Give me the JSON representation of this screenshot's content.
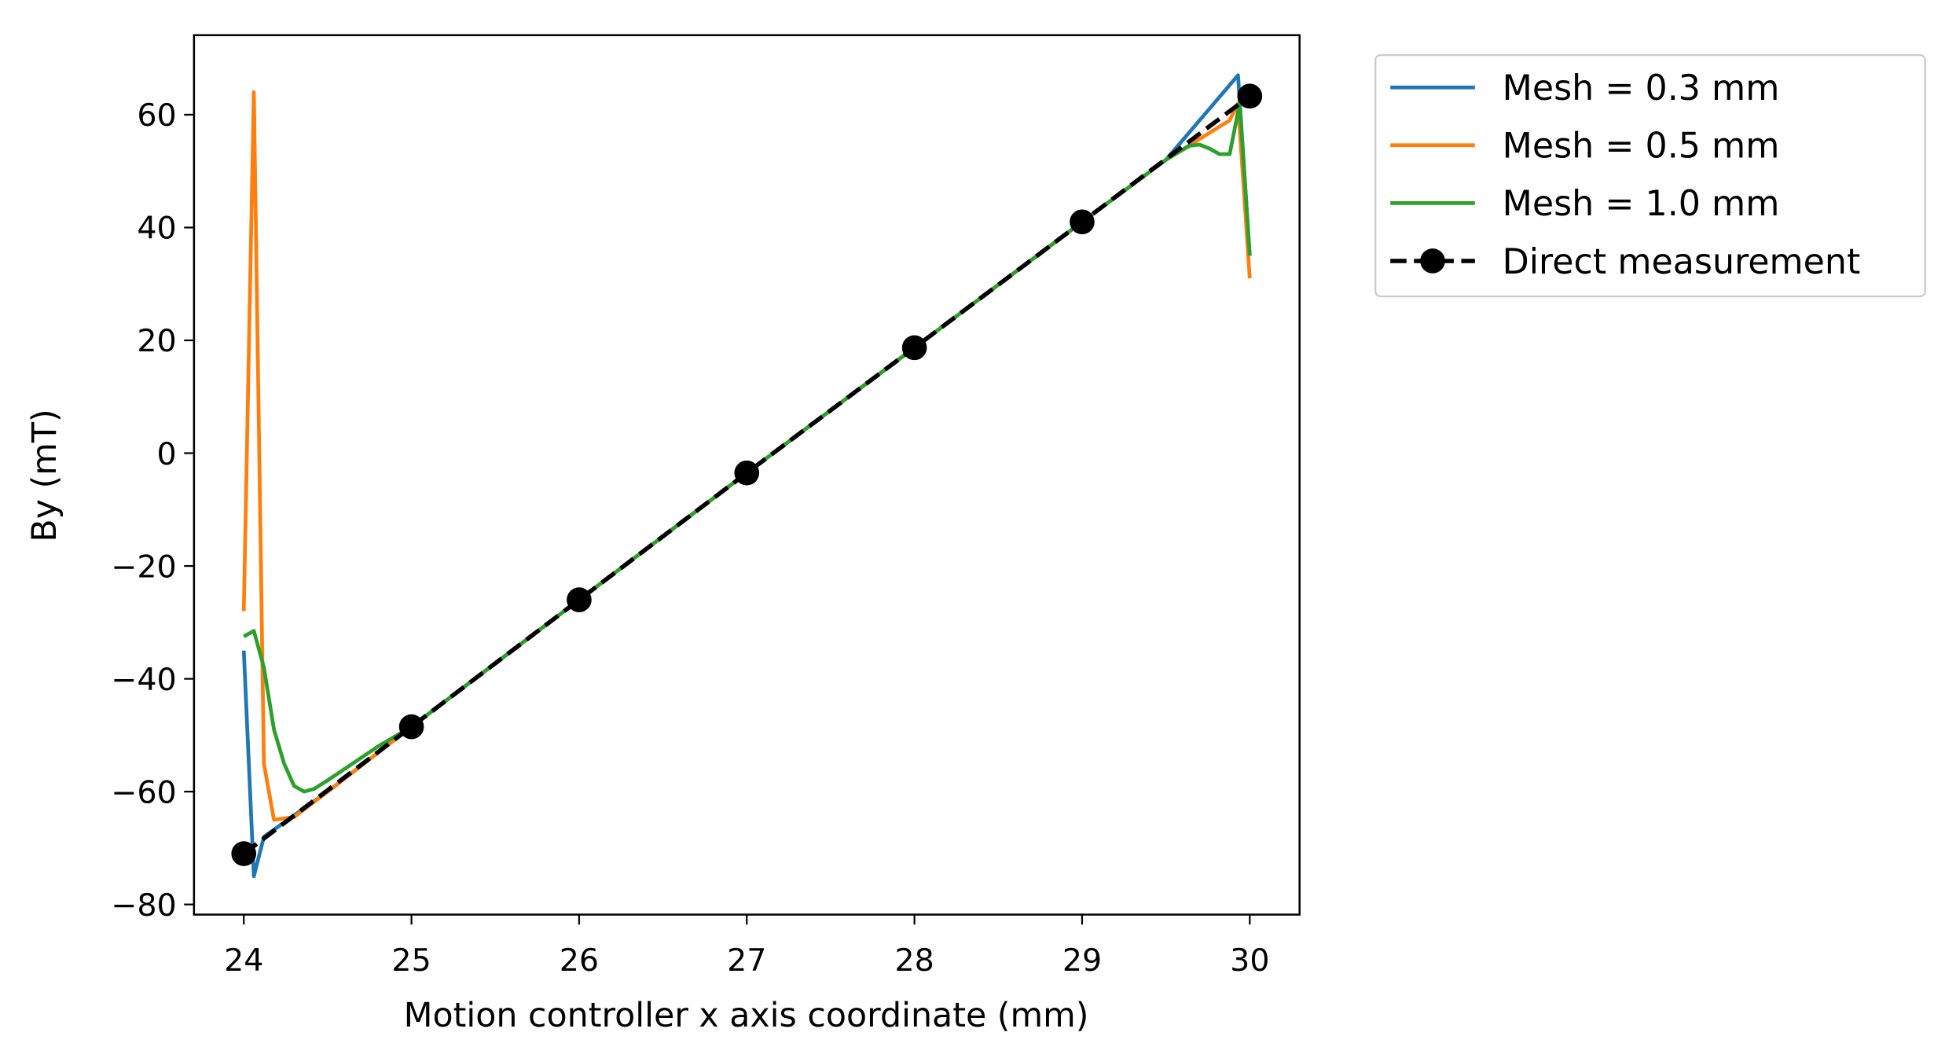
{
  "chart_data": {
    "type": "line",
    "xlabel": "Motion controller x axis coordinate (mm)",
    "ylabel": "By (mT)",
    "xlim": [
      23.703,
      30.297
    ],
    "ylim": [
      -81.8,
      74.1
    ],
    "xticks": [
      24,
      25,
      26,
      27,
      28,
      29,
      30
    ],
    "yticks": [
      {
        "value": -80,
        "label": "−80"
      },
      {
        "value": -60,
        "label": "−60"
      },
      {
        "value": -40,
        "label": "−40"
      },
      {
        "value": -20,
        "label": "−20"
      },
      0,
      20,
      40,
      60
    ],
    "legend": "outside-upper-right",
    "series": [
      {
        "name": "Mesh = 0.3 mm",
        "color": "#1f77b4",
        "x": [
          24.0,
          24.06,
          24.12,
          24.5,
          25,
          26,
          27,
          28,
          29,
          29.5,
          29.93,
          30.0
        ],
        "values": [
          -35,
          -75,
          -68,
          -60,
          -48.5,
          -26,
          -3.5,
          18.7,
          41,
          52,
          67,
          35
        ]
      },
      {
        "name": "Mesh = 0.5 mm",
        "color": "#ff7f0e",
        "x": [
          24.0,
          24.06,
          24.12,
          24.18,
          24.3,
          24.5,
          25,
          26,
          27,
          28,
          29,
          29.5,
          29.88,
          29.93,
          30.0
        ],
        "values": [
          -28,
          64,
          -55,
          -65,
          -64.5,
          -60,
          -48.5,
          -26,
          -3.5,
          18.7,
          41,
          52,
          59,
          62,
          31
        ]
      },
      {
        "name": "Mesh = 1.0 mm",
        "color": "#2ca02c",
        "x": [
          24.0,
          24.06,
          24.12,
          24.18,
          24.24,
          24.3,
          24.36,
          24.42,
          24.5,
          24.6,
          24.8,
          25,
          26,
          27,
          28,
          29,
          29.5,
          29.64,
          29.7,
          29.76,
          29.82,
          29.88,
          29.94,
          30.0
        ],
        "values": [
          -32.5,
          -31.5,
          -38,
          -49,
          -55,
          -59,
          -60,
          -59.5,
          -58,
          -56,
          -52,
          -48.5,
          -26,
          -3.5,
          18.7,
          41,
          52,
          54.5,
          54.7,
          54,
          53,
          53,
          62,
          35
        ]
      },
      {
        "name": "Direct measurement",
        "color": "#000000",
        "dashed": true,
        "markers": true,
        "x": [
          24,
          25,
          26,
          27,
          28,
          29,
          30
        ],
        "values": [
          -71,
          -48.5,
          -26,
          -3.5,
          18.7,
          41,
          63.3
        ]
      }
    ]
  }
}
